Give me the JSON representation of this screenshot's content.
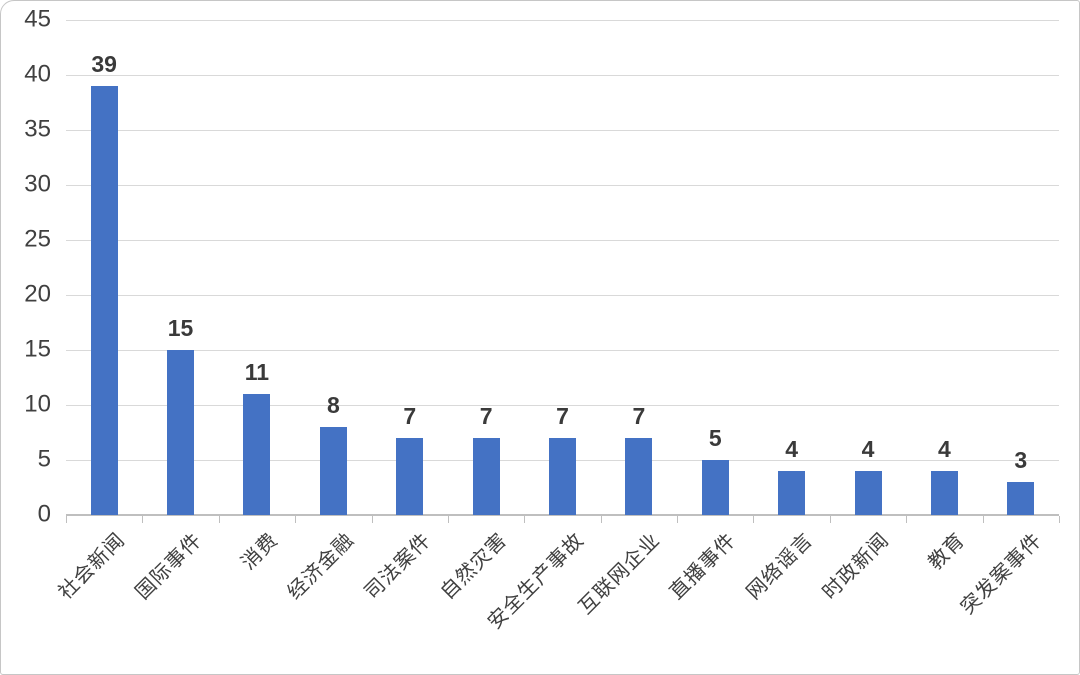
{
  "chart_data": {
    "type": "bar",
    "title": "",
    "xlabel": "",
    "ylabel": "",
    "categories": [
      "社会新闻",
      "国际事件",
      "消费",
      "经济金融",
      "司法案件",
      "自然灾害",
      "安全生产事故",
      "互联网企业",
      "直播事件",
      "网络谣言",
      "时政新闻",
      "教育",
      "突发案事件"
    ],
    "values": [
      39,
      15,
      11,
      8,
      7,
      7,
      7,
      7,
      5,
      4,
      4,
      4,
      3
    ],
    "ylim": [
      0,
      45
    ],
    "yticks": [
      0,
      5,
      10,
      15,
      20,
      25,
      30,
      35,
      40,
      45
    ],
    "grid": true,
    "legend": false,
    "category_label_rotation_deg": -45,
    "colors": {
      "bar": "#4472C4",
      "gridline": "#D9D9D9",
      "axis": "#BFBFBF",
      "y_tick_label": "#404040",
      "value_label": "#3A3A3A",
      "category_label": "#404040",
      "background": "#FFFFFF",
      "frame_border": "#C6C6C6"
    }
  }
}
